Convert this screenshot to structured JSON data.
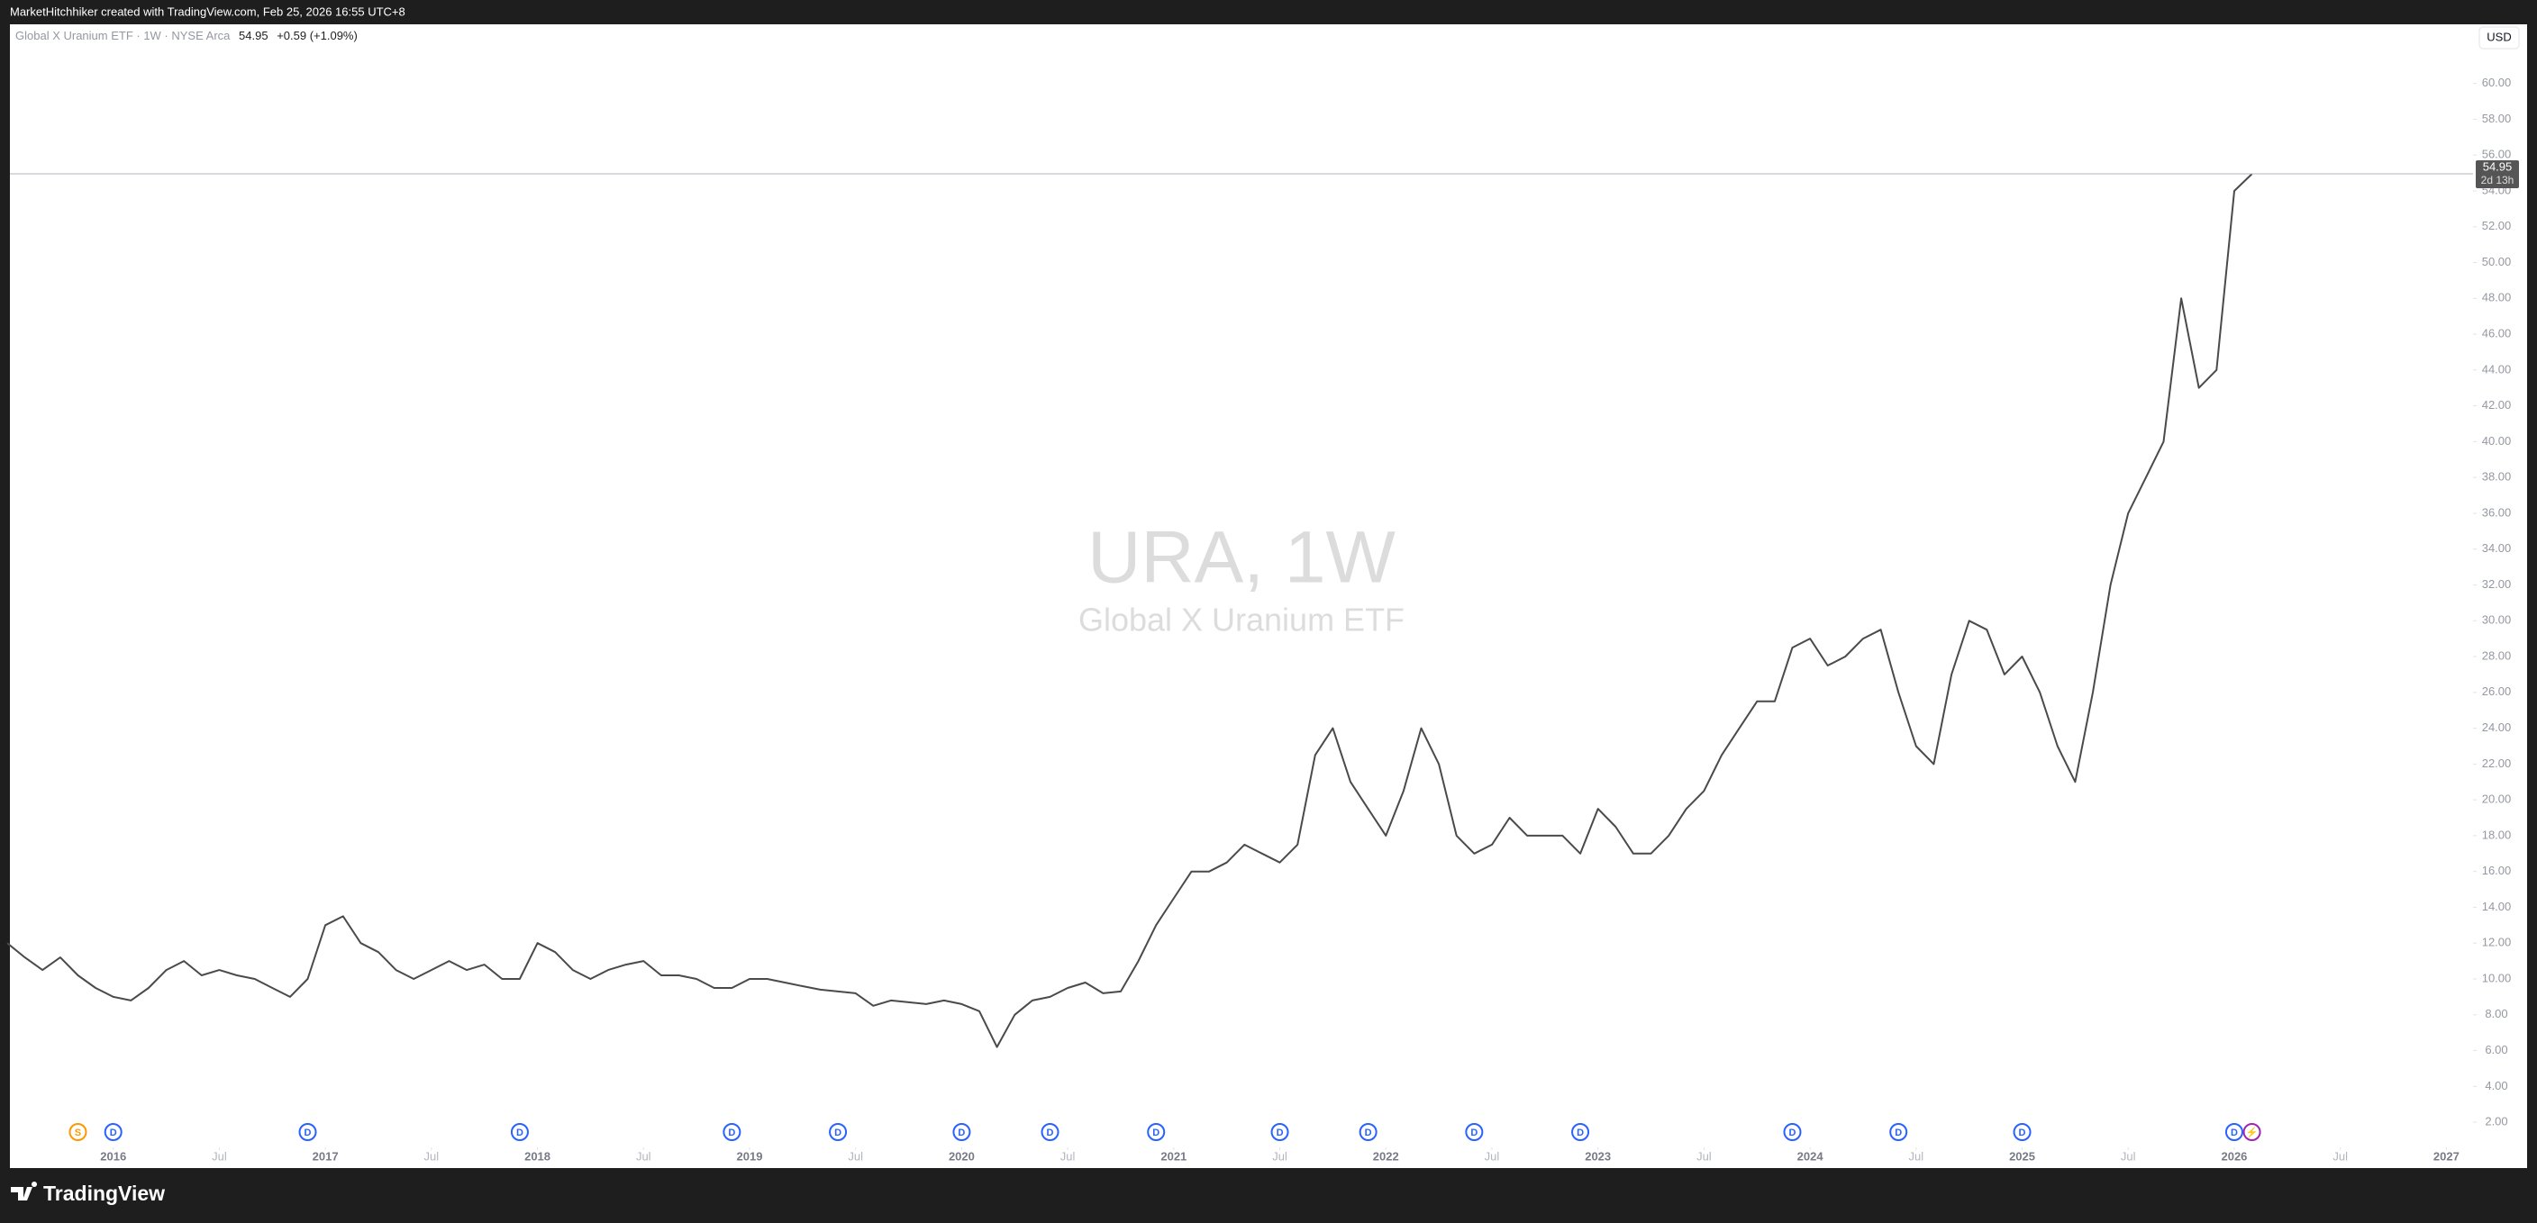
{
  "chart_data": {
    "type": "line",
    "header": "MarketHitchhiker created with TradingView.com, Feb 25, 2026 16:55 UTC+8",
    "legend": {
      "name": "Global X Uranium ETF · 1W · NYSE Arca",
      "last": "54.95",
      "change": "+0.59 (+1.09%)"
    },
    "currency": "USD",
    "watermark": {
      "title": "URA, 1W",
      "subtitle": "Global X Uranium ETF"
    },
    "countdown": "2d 13h",
    "brand": "TradingView",
    "x": [
      "2015-07",
      "2015-08",
      "2015-09",
      "2015-10",
      "2015-11",
      "2015-12",
      "2016-01",
      "2016-02",
      "2016-03",
      "2016-04",
      "2016-05",
      "2016-06",
      "2016-07",
      "2016-08",
      "2016-09",
      "2016-10",
      "2016-11",
      "2016-12",
      "2017-01",
      "2017-02",
      "2017-03",
      "2017-04",
      "2017-05",
      "2017-06",
      "2017-07",
      "2017-08",
      "2017-09",
      "2017-10",
      "2017-11",
      "2017-12",
      "2018-01",
      "2018-02",
      "2018-03",
      "2018-04",
      "2018-05",
      "2018-06",
      "2018-07",
      "2018-08",
      "2018-09",
      "2018-10",
      "2018-11",
      "2018-12",
      "2019-01",
      "2019-02",
      "2019-03",
      "2019-04",
      "2019-05",
      "2019-06",
      "2019-07",
      "2019-08",
      "2019-09",
      "2019-10",
      "2019-11",
      "2019-12",
      "2020-01",
      "2020-02",
      "2020-03",
      "2020-04",
      "2020-05",
      "2020-06",
      "2020-07",
      "2020-08",
      "2020-09",
      "2020-10",
      "2020-11",
      "2020-12",
      "2021-01",
      "2021-02",
      "2021-03",
      "2021-04",
      "2021-05",
      "2021-06",
      "2021-07",
      "2021-08",
      "2021-09",
      "2021-10",
      "2021-11",
      "2021-12",
      "2022-01",
      "2022-02",
      "2022-03",
      "2022-04",
      "2022-05",
      "2022-06",
      "2022-07",
      "2022-08",
      "2022-09",
      "2022-10",
      "2022-11",
      "2022-12",
      "2023-01",
      "2023-02",
      "2023-03",
      "2023-04",
      "2023-05",
      "2023-06",
      "2023-07",
      "2023-08",
      "2023-09",
      "2023-10",
      "2023-11",
      "2023-12",
      "2024-01",
      "2024-02",
      "2024-03",
      "2024-04",
      "2024-05",
      "2024-06",
      "2024-07",
      "2024-08",
      "2024-09",
      "2024-10",
      "2024-11",
      "2024-12",
      "2025-01",
      "2025-02",
      "2025-03",
      "2025-04",
      "2025-05",
      "2025-06",
      "2025-07",
      "2025-08",
      "2025-09",
      "2025-10",
      "2025-11",
      "2025-12",
      "2026-01",
      "2026-02"
    ],
    "series": [
      {
        "name": "URA",
        "color": "#4a4a4a",
        "values": [
          12,
          11.2,
          10.5,
          11.2,
          10.2,
          9.5,
          9,
          8.8,
          9.5,
          10.5,
          11,
          10.2,
          10.5,
          10.2,
          10,
          9.5,
          9,
          10,
          13,
          13.5,
          12,
          11.5,
          10.5,
          10,
          10.5,
          11,
          10.5,
          10.8,
          10,
          10,
          12,
          11.5,
          10.5,
          10,
          10.5,
          10.8,
          11,
          10.2,
          10.2,
          10,
          9.5,
          9.5,
          10,
          10,
          9.8,
          9.6,
          9.4,
          9.3,
          9.2,
          8.5,
          8.8,
          8.7,
          8.6,
          8.8,
          8.6,
          8.2,
          6.2,
          8,
          8.8,
          9,
          9.5,
          9.8,
          9.2,
          9.3,
          11,
          13,
          14.5,
          16,
          16,
          16.5,
          17.5,
          17,
          16.5,
          17.5,
          22.5,
          24,
          21,
          19.5,
          18,
          20.5,
          24,
          22,
          18,
          17,
          17.5,
          19,
          18,
          18,
          18,
          17,
          19.5,
          18.5,
          17,
          17,
          18,
          19.5,
          20.5,
          22.5,
          24,
          25.5,
          25.5,
          28.5,
          29,
          27.5,
          28,
          29,
          29.5,
          26,
          23,
          22,
          27,
          30,
          29.5,
          27,
          28,
          26,
          23,
          21,
          26,
          32,
          36,
          38,
          40,
          48,
          43,
          44,
          54,
          54.95
        ]
      }
    ],
    "events": [
      {
        "x": "2015-11",
        "label": "S"
      },
      {
        "x": "2016-01",
        "label": "D"
      },
      {
        "x": "2016-12",
        "label": "D"
      },
      {
        "x": "2017-12",
        "label": "D"
      },
      {
        "x": "2018-12",
        "label": "D"
      },
      {
        "x": "2019-06",
        "label": "D"
      },
      {
        "x": "2020-01",
        "label": "D"
      },
      {
        "x": "2020-06",
        "label": "D"
      },
      {
        "x": "2020-12",
        "label": "D"
      },
      {
        "x": "2021-07",
        "label": "D"
      },
      {
        "x": "2021-12",
        "label": "D"
      },
      {
        "x": "2022-06",
        "label": "D"
      },
      {
        "x": "2022-12",
        "label": "D"
      },
      {
        "x": "2023-12",
        "label": "D"
      },
      {
        "x": "2024-06",
        "label": "D"
      },
      {
        "x": "2025-01",
        "label": "D"
      },
      {
        "x": "2026-01",
        "label": "D"
      },
      {
        "x": "2026-02",
        "label": "⚡"
      }
    ],
    "xlim": [
      "2015-07",
      "2027-02"
    ],
    "xticks": [
      {
        "value": "2016-01",
        "label": "2016"
      },
      {
        "value": "2016-07",
        "label": "Jul"
      },
      {
        "value": "2017-01",
        "label": "2017"
      },
      {
        "value": "2017-07",
        "label": "Jul"
      },
      {
        "value": "2018-01",
        "label": "2018"
      },
      {
        "value": "2018-07",
        "label": "Jul"
      },
      {
        "value": "2019-01",
        "label": "2019"
      },
      {
        "value": "2019-07",
        "label": "Jul"
      },
      {
        "value": "2020-01",
        "label": "2020"
      },
      {
        "value": "2020-07",
        "label": "Jul"
      },
      {
        "value": "2021-01",
        "label": "2021"
      },
      {
        "value": "2021-07",
        "label": "Jul"
      },
      {
        "value": "2022-01",
        "label": "2022"
      },
      {
        "value": "2022-07",
        "label": "Jul"
      },
      {
        "value": "2023-01",
        "label": "2023"
      },
      {
        "value": "2023-07",
        "label": "Jul"
      },
      {
        "value": "2024-01",
        "label": "2024"
      },
      {
        "value": "2024-07",
        "label": "Jul"
      },
      {
        "value": "2025-01",
        "label": "2025"
      },
      {
        "value": "2025-07",
        "label": "Jul"
      },
      {
        "value": "2026-01",
        "label": "2026"
      },
      {
        "value": "2026-07",
        "label": "Jul"
      },
      {
        "value": "2027-01",
        "label": "2027"
      }
    ],
    "ylim": [
      1,
      63.3
    ],
    "yticks": [
      {
        "value": 2,
        "label": "2.00"
      },
      {
        "value": 4,
        "label": "4.00"
      },
      {
        "value": 6,
        "label": "6.00"
      },
      {
        "value": 8,
        "label": "8.00"
      },
      {
        "value": 10,
        "label": "10.00"
      },
      {
        "value": 12,
        "label": "12.00"
      },
      {
        "value": 14,
        "label": "14.00"
      },
      {
        "value": 16,
        "label": "16.00"
      },
      {
        "value": 18,
        "label": "18.00"
      },
      {
        "value": 20,
        "label": "20.00"
      },
      {
        "value": 22,
        "label": "22.00"
      },
      {
        "value": 24,
        "label": "24.00"
      },
      {
        "value": 26,
        "label": "26.00"
      },
      {
        "value": 28,
        "label": "28.00"
      },
      {
        "value": 30,
        "label": "30.00"
      },
      {
        "value": 32,
        "label": "32.00"
      },
      {
        "value": 34,
        "label": "34.00"
      },
      {
        "value": 36,
        "label": "36.00"
      },
      {
        "value": 38,
        "label": "38.00"
      },
      {
        "value": 40,
        "label": "40.00"
      },
      {
        "value": 42,
        "label": "42.00"
      },
      {
        "value": 44,
        "label": "44.00"
      },
      {
        "value": 46,
        "label": "46.00"
      },
      {
        "value": 48,
        "label": "48.00"
      },
      {
        "value": 50,
        "label": "50.00"
      },
      {
        "value": 52,
        "label": "52.00"
      },
      {
        "value": 54,
        "label": "54.00"
      },
      {
        "value": 56,
        "label": "56.00"
      },
      {
        "value": 58,
        "label": "58.00"
      },
      {
        "value": 60,
        "label": "60.00"
      }
    ],
    "grid": false
  }
}
